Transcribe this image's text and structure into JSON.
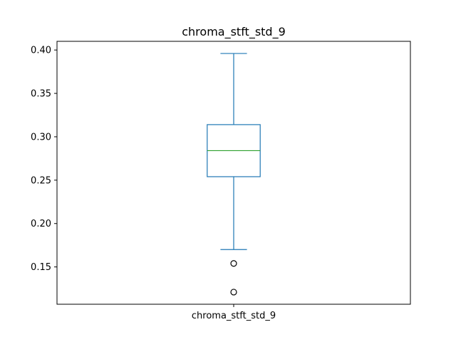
{
  "chart_data": {
    "type": "box",
    "title": "chroma_stft_std_9",
    "xlabel": "",
    "ylabel": "",
    "categories": [
      "chroma_stft_std_9"
    ],
    "boxes": [
      {
        "name": "chroma_stft_std_9",
        "whisker_low": 0.17,
        "q1": 0.254,
        "median": 0.284,
        "q3": 0.314,
        "whisker_high": 0.396,
        "outliers": [
          0.154,
          0.121
        ]
      }
    ],
    "ylim": [
      0.107,
      0.41
    ],
    "yticks": [
      0.15,
      0.2,
      0.25,
      0.3,
      0.35,
      0.4
    ],
    "ytick_labels": [
      "0.15",
      "0.20",
      "0.25",
      "0.30",
      "0.35",
      "0.40"
    ],
    "grid": false,
    "legend": "none",
    "colors": {
      "box": "#1f77b4",
      "median": "#2ca02c",
      "outlier": "#000000",
      "axes": "#000000"
    }
  }
}
